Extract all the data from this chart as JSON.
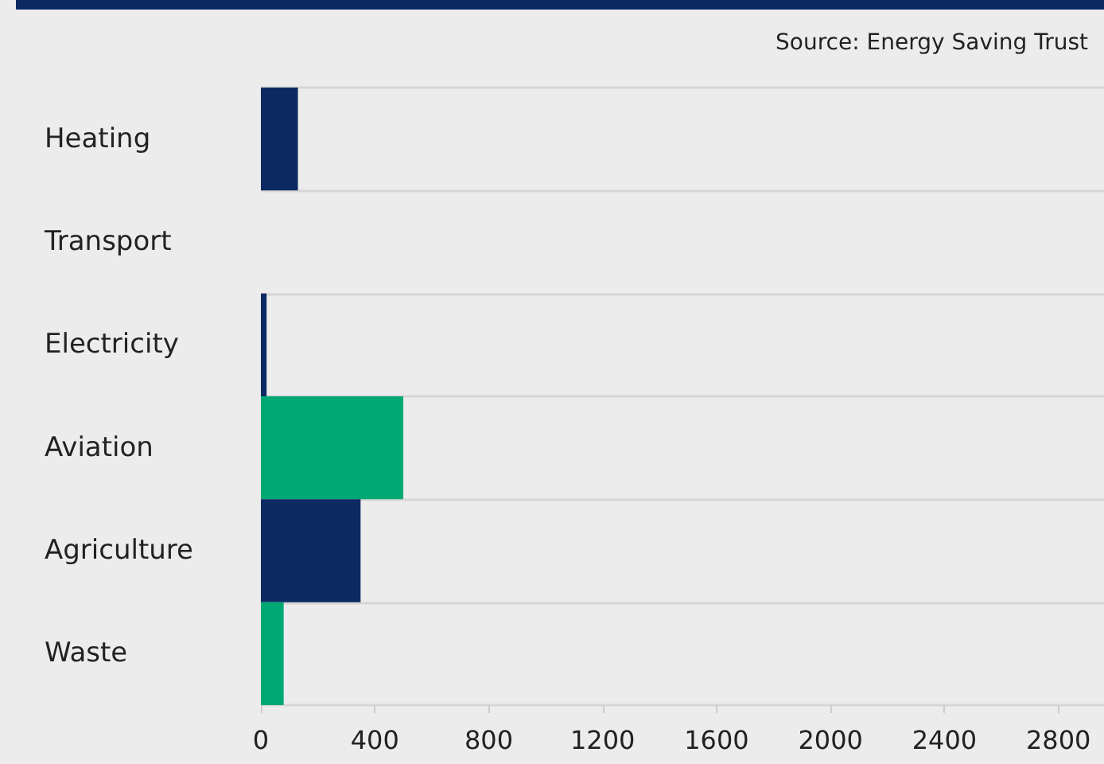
{
  "chart_data": {
    "type": "bar",
    "orientation": "horizontal",
    "categories": [
      "Heating",
      "Transport",
      "Electricity",
      "Aviation",
      "Agriculture",
      "Waste"
    ],
    "values": [
      130,
      0,
      20,
      500,
      350,
      80
    ],
    "colors": [
      "#0c2a62",
      "#00a874",
      "#0c2a62",
      "#00a874",
      "#0c2a62",
      "#00a874"
    ],
    "xlim": [
      0,
      2960
    ],
    "xticks": [
      0,
      400,
      800,
      1200,
      1600,
      2000,
      2400,
      2800
    ],
    "grid": "y",
    "annotations": [
      "Source: Energy Saving Trust"
    ]
  }
}
